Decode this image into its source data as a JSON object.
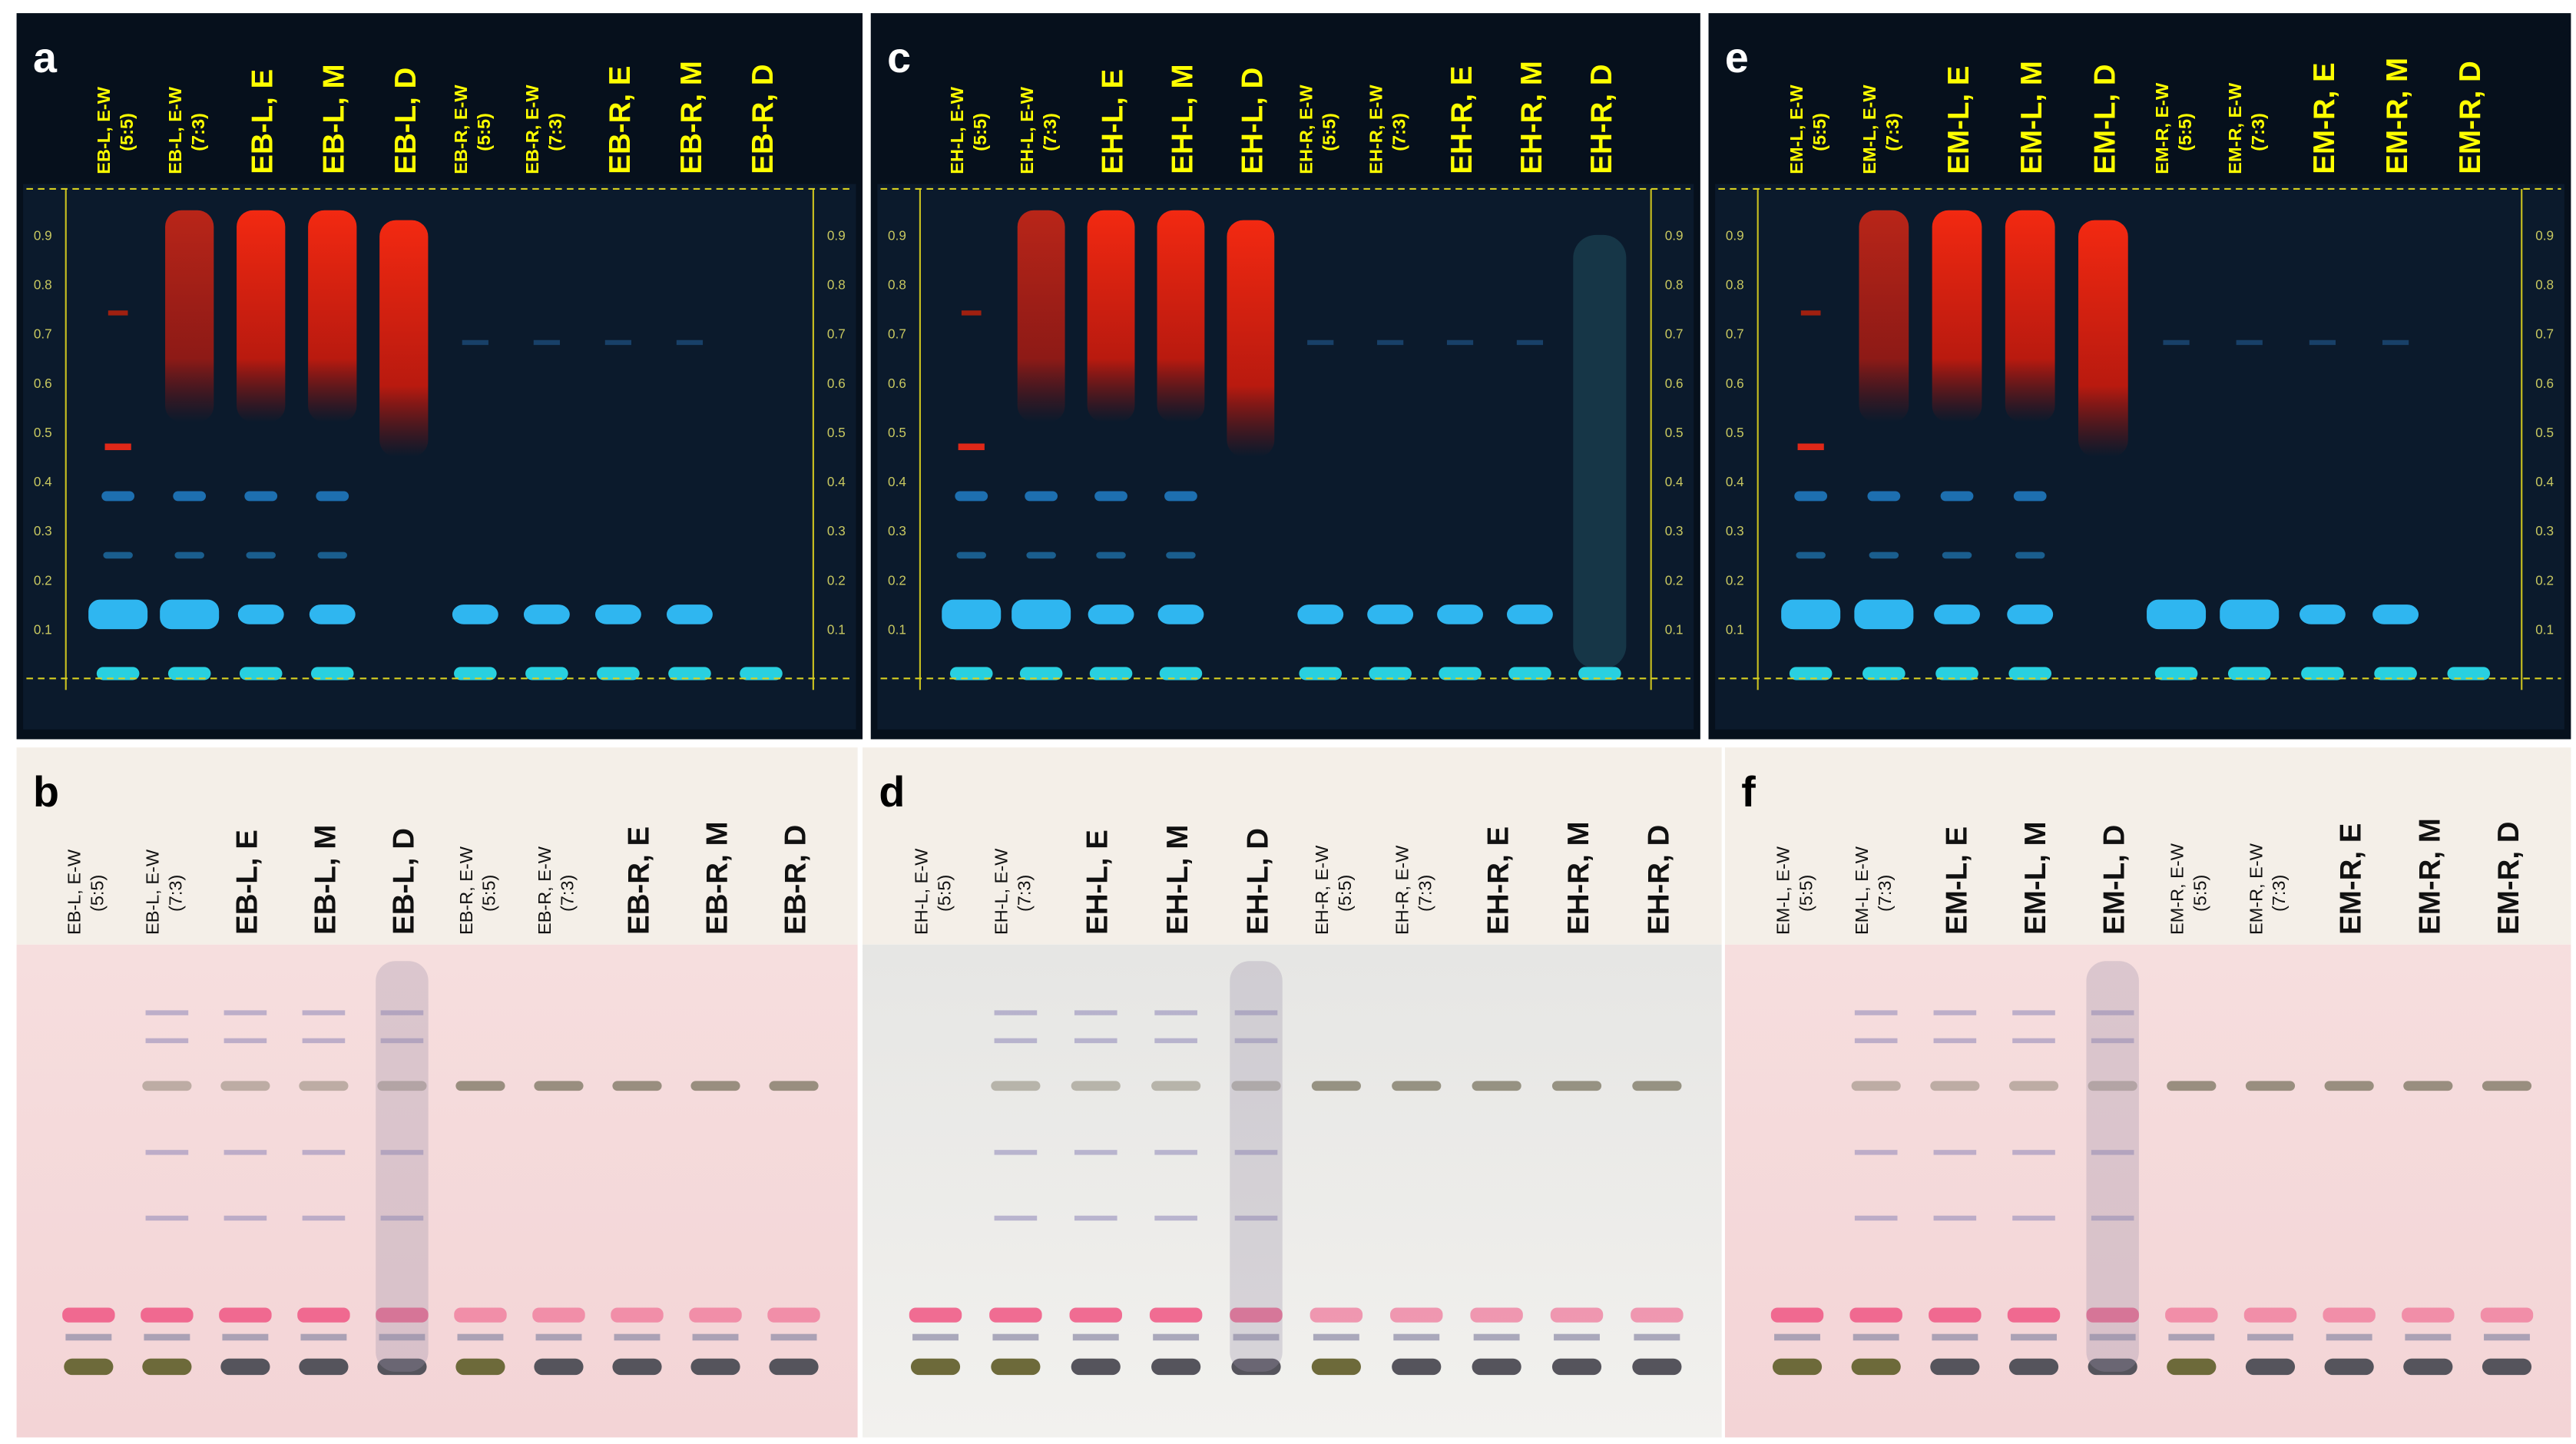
{
  "panels": [
    {
      "letter": "a",
      "lanes": [
        [
          "EB-L, E-W",
          "(5:5)"
        ],
        [
          "EB-L, E-W",
          "(7:3)"
        ],
        [
          "EB-L, E"
        ],
        [
          "EB-L, M"
        ],
        [
          "EB-L, D"
        ],
        [
          "EB-R, E-W",
          "(5:5)"
        ],
        [
          "EB-R, E-W",
          "(7:3)"
        ],
        [
          "EB-R, E"
        ],
        [
          "EB-R, M"
        ],
        [
          "EB-R, D"
        ]
      ],
      "rf_ticks": [
        "0.1",
        "0.2",
        "0.3",
        "0.4",
        "0.5",
        "0.6",
        "0.7",
        "0.8",
        "0.9"
      ]
    },
    {
      "letter": "c",
      "lanes": [
        [
          "EH-L, E-W",
          "(5:5)"
        ],
        [
          "EH-L, E-W",
          "(7:3)"
        ],
        [
          "EH-L, E"
        ],
        [
          "EH-L, M"
        ],
        [
          "EH-L, D"
        ],
        [
          "EH-R, E-W",
          "(5:5)"
        ],
        [
          "EH-R, E-W",
          "(7:3)"
        ],
        [
          "EH-R, E"
        ],
        [
          "EH-R, M"
        ],
        [
          "EH-R, D"
        ]
      ],
      "rf_ticks": [
        "0.1",
        "0.2",
        "0.3",
        "0.4",
        "0.5",
        "0.6",
        "0.7",
        "0.8",
        "0.9"
      ]
    },
    {
      "letter": "e",
      "lanes": [
        [
          "EM-L, E-W",
          "(5:5)"
        ],
        [
          "EM-L, E-W",
          "(7:3)"
        ],
        [
          "EM-L, E"
        ],
        [
          "EM-L, M"
        ],
        [
          "EM-L, D"
        ],
        [
          "EM-R, E-W",
          "(5:5)"
        ],
        [
          "EM-R, E-W",
          "(7:3)"
        ],
        [
          "EM-R, E"
        ],
        [
          "EM-R, M"
        ],
        [
          "EM-R, D"
        ]
      ],
      "rf_ticks": [
        "0.1",
        "0.2",
        "0.3",
        "0.4",
        "0.5",
        "0.6",
        "0.7",
        "0.8",
        "0.9"
      ]
    },
    {
      "letter": "b",
      "lanes": [
        [
          "EB-L, E-W",
          "(5:5)"
        ],
        [
          "EB-L, E-W",
          "(7:3)"
        ],
        [
          "EB-L, E"
        ],
        [
          "EB-L, M"
        ],
        [
          "EB-L, D"
        ],
        [
          "EB-R, E-W",
          "(5:5)"
        ],
        [
          "EB-R, E-W",
          "(7:3)"
        ],
        [
          "EB-R, E"
        ],
        [
          "EB-R, M"
        ],
        [
          "EB-R, D"
        ]
      ]
    },
    {
      "letter": "d",
      "lanes": [
        [
          "EH-L, E-W",
          "(5:5)"
        ],
        [
          "EH-L, E-W",
          "(7:3)"
        ],
        [
          "EH-L, E"
        ],
        [
          "EH-L, M"
        ],
        [
          "EH-L, D"
        ],
        [
          "EH-R, E-W",
          "(5:5)"
        ],
        [
          "EH-R, E-W",
          "(7:3)"
        ],
        [
          "EH-R, E"
        ],
        [
          "EH-R, M"
        ],
        [
          "EH-R, D"
        ]
      ]
    },
    {
      "letter": "f",
      "lanes": [
        [
          "EM-L, E-W",
          "(5:5)"
        ],
        [
          "EM-L, E-W",
          "(7:3)"
        ],
        [
          "EM-L, E"
        ],
        [
          "EM-L, M"
        ],
        [
          "EM-L, D"
        ],
        [
          "EM-R, E-W",
          "(5:5)"
        ],
        [
          "EM-R, E-W",
          "(7:3)"
        ],
        [
          "EM-R, E"
        ],
        [
          "EM-R, M"
        ],
        [
          "EM-R, D"
        ]
      ]
    }
  ]
}
